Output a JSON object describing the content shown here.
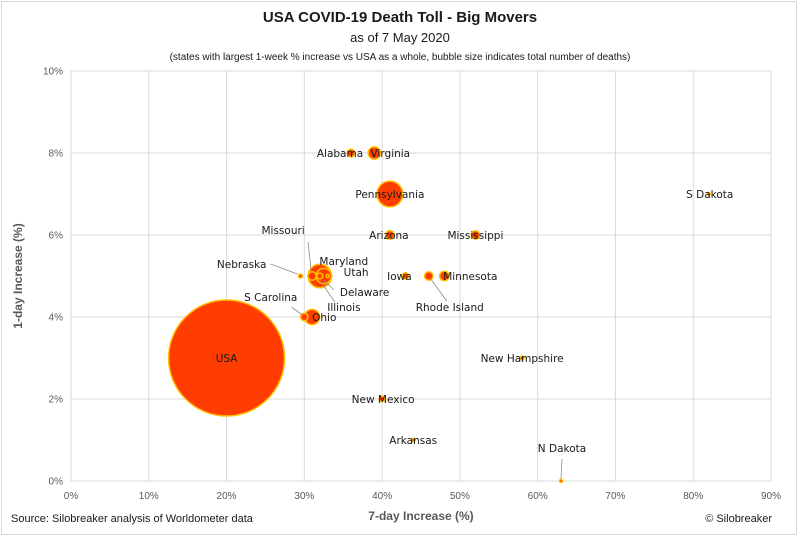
{
  "title": "USA COVID-19 Death Toll - Big Movers",
  "subtitle": "as of 7 May 2020",
  "note": "(states with largest 1-week % increase vs USA as a whole, bubble size indicates total number of deaths)",
  "source": "Source: Silobreaker analysis of Worldometer data",
  "copyright": "© Silobreaker",
  "colors": {
    "bubble_fill": "#ff3d00",
    "bubble_edge": "#ffc000",
    "grid": "#d9d9d9",
    "leader": "#8c8c8c"
  },
  "chart_data": {
    "type": "scatter",
    "bubble": true,
    "title": "USA COVID-19 Death Toll - Big Movers",
    "xlabel": "7-day Increase (%)",
    "ylabel": "1-day Increase (%)",
    "xlim": [
      0,
      90
    ],
    "ylim": [
      0,
      10
    ],
    "x_ticks": [
      "0%",
      "10%",
      "20%",
      "30%",
      "40%",
      "50%",
      "60%",
      "70%",
      "80%",
      "90%"
    ],
    "y_ticks": [
      "0%",
      "2%",
      "4%",
      "6%",
      "8%",
      "10%"
    ],
    "grid": true,
    "points": [
      {
        "label": "USA",
        "x": 20,
        "y": 3,
        "size": 75000
      },
      {
        "label": "Pennsylvania",
        "x": 41,
        "y": 7,
        "size": 3700
      },
      {
        "label": "Illinois",
        "x": 32,
        "y": 5,
        "size": 3100
      },
      {
        "label": "Maryland",
        "x": 32.5,
        "y": 5,
        "size": 1300
      },
      {
        "label": "Virginia",
        "x": 39,
        "y": 8,
        "size": 850
      },
      {
        "label": "Ohio",
        "x": 31,
        "y": 4,
        "size": 1300
      },
      {
        "label": "Missouri",
        "x": 31,
        "y": 5,
        "size": 400
      },
      {
        "label": "Utah",
        "x": 33,
        "y": 5,
        "size": 60
      },
      {
        "label": "Delaware",
        "x": 32,
        "y": 5,
        "size": 190
      },
      {
        "label": "Alabama",
        "x": 36,
        "y": 8,
        "size": 330
      },
      {
        "label": "Mississippi",
        "x": 52,
        "y": 6,
        "size": 400
      },
      {
        "label": "Minnesota",
        "x": 48,
        "y": 5,
        "size": 500
      },
      {
        "label": "Rhode Island",
        "x": 46,
        "y": 5,
        "size": 400
      },
      {
        "label": "Arizona",
        "x": 41,
        "y": 6,
        "size": 420
      },
      {
        "label": "Iowa",
        "x": 43,
        "y": 5,
        "size": 230
      },
      {
        "label": "S Carolina",
        "x": 30,
        "y": 4,
        "size": 310
      },
      {
        "label": "Nebraska",
        "x": 29.5,
        "y": 5,
        "size": 90
      },
      {
        "label": "New Mexico",
        "x": 40,
        "y": 2,
        "size": 180
      },
      {
        "label": "Arkansas",
        "x": 44,
        "y": 1,
        "size": 80
      },
      {
        "label": "New Hampshire",
        "x": 58,
        "y": 3,
        "size": 90
      },
      {
        "label": "S Dakota",
        "x": 82,
        "y": 7,
        "size": 20
      },
      {
        "label": "N Dakota",
        "x": 63,
        "y": 0,
        "size": 20
      }
    ]
  }
}
